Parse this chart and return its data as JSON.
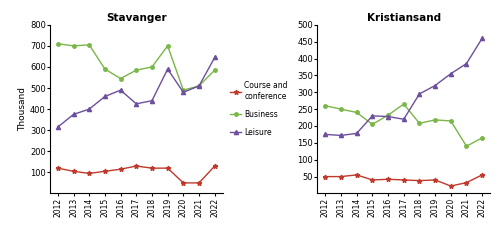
{
  "years": [
    2012,
    2013,
    2014,
    2015,
    2016,
    2017,
    2018,
    2019,
    2020,
    2021,
    2022
  ],
  "stavanger": {
    "course_conference": [
      120,
      105,
      95,
      105,
      115,
      130,
      120,
      120,
      50,
      50,
      130
    ],
    "business": [
      710,
      700,
      705,
      590,
      545,
      585,
      600,
      700,
      490,
      510,
      585
    ],
    "leisure": [
      315,
      375,
      400,
      460,
      490,
      425,
      440,
      590,
      480,
      510,
      645
    ]
  },
  "kristiansand": {
    "course_conference": [
      50,
      50,
      55,
      40,
      42,
      40,
      38,
      40,
      22,
      32,
      55
    ],
    "business": [
      260,
      250,
      240,
      205,
      232,
      265,
      208,
      218,
      215,
      140,
      165
    ],
    "leisure": [
      175,
      172,
      178,
      230,
      228,
      220,
      295,
      320,
      355,
      385,
      460
    ]
  },
  "colors": {
    "course_conference": "#c0392b",
    "business": "#7ab648",
    "leisure": "#6c4f9e"
  },
  "legend_labels": [
    "Course and\nconference",
    "Business",
    "Leisure"
  ],
  "stavanger_title": "Stavanger",
  "kristiansand_title": "Kristiansand",
  "ylabel": "Thousand",
  "stavanger_ylim": [
    0,
    800
  ],
  "kristiansand_ylim": [
    0,
    500
  ],
  "stavanger_yticks": [
    100,
    200,
    300,
    400,
    500,
    600,
    700,
    800
  ],
  "kristiansand_yticks": [
    50,
    100,
    150,
    200,
    250,
    300,
    350,
    400,
    450,
    500
  ]
}
